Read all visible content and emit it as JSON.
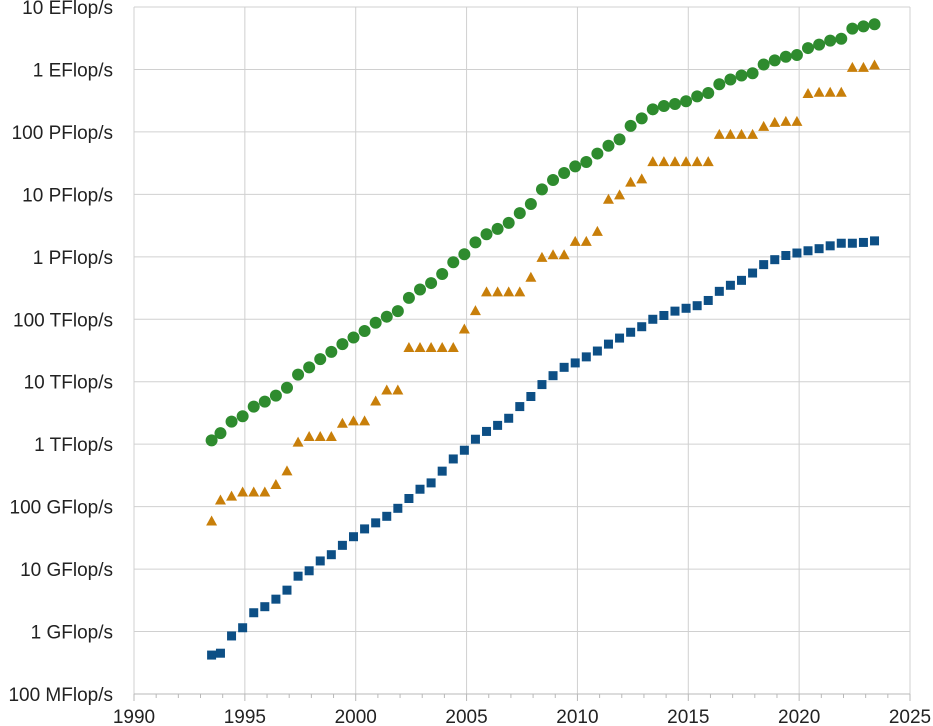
{
  "chart_data": {
    "type": "scatter",
    "title": "",
    "xlabel": "",
    "ylabel": "",
    "xlim": [
      1990,
      2025
    ],
    "ylim_flops": [
      100000000.0,
      1e+19
    ],
    "y_scale": "log",
    "grid": true,
    "legend": "none",
    "x_ticks": [
      1990,
      1995,
      2000,
      2005,
      2010,
      2015,
      2020,
      2025
    ],
    "y_ticks": [
      {
        "value": 100000000.0,
        "label": "100 MFlop/s"
      },
      {
        "value": 1000000000.0,
        "label": "1 GFlop/s"
      },
      {
        "value": 10000000000.0,
        "label": "10 GFlop/s"
      },
      {
        "value": 100000000000.0,
        "label": "100 GFlop/s"
      },
      {
        "value": 1000000000000.0,
        "label": "1 TFlop/s"
      },
      {
        "value": 10000000000000.0,
        "label": "10 TFlop/s"
      },
      {
        "value": 100000000000000.0,
        "label": "100 TFlop/s"
      },
      {
        "value": 1000000000000000.0,
        "label": "1 PFlop/s"
      },
      {
        "value": 1e+16,
        "label": "10 PFlop/s"
      },
      {
        "value": 1e+17,
        "label": "100 PFlop/s"
      },
      {
        "value": 1e+18,
        "label": "1 EFlop/s"
      },
      {
        "value": 1e+19,
        "label": "10 EFlop/s"
      }
    ],
    "series": [
      {
        "marker": "circle",
        "color": "#2e8b2e",
        "x": [
          1993.5,
          1993.9,
          1994.4,
          1994.9,
          1995.4,
          1995.9,
          1996.4,
          1996.9,
          1997.4,
          1997.9,
          1998.4,
          1998.9,
          1999.4,
          1999.9,
          2000.4,
          2000.9,
          2001.4,
          2001.9,
          2002.4,
          2002.9,
          2003.4,
          2003.9,
          2004.4,
          2004.9,
          2005.4,
          2005.9,
          2006.4,
          2006.9,
          2007.4,
          2007.9,
          2008.4,
          2008.9,
          2009.4,
          2009.9,
          2010.4,
          2010.9,
          2011.4,
          2011.9,
          2012.4,
          2012.9,
          2013.4,
          2013.9,
          2014.4,
          2014.9,
          2015.4,
          2015.9,
          2016.4,
          2016.9,
          2017.4,
          2017.9,
          2018.4,
          2018.9,
          2019.4,
          2019.9,
          2020.4,
          2020.9,
          2021.4,
          2021.9,
          2022.4,
          2022.9,
          2023.4
        ],
        "y": [
          1150000000000.0,
          1500000000000.0,
          2300000000000.0,
          2800000000000.0,
          4000000000000.0,
          4800000000000.0,
          6000000000000.0,
          8000000000000.0,
          13000000000000.0,
          17000000000000.0,
          23000000000000.0,
          30000000000000.0,
          40000000000000.0,
          51000000000000.0,
          65000000000000.0,
          88000000000000.0,
          110000000000000.0,
          135000000000000.0,
          220000000000000.0,
          300000000000000.0,
          380000000000000.0,
          530000000000000.0,
          820000000000000.0,
          1100000000000000.0,
          1700000000000000.0,
          2300000000000000.0,
          2800000000000000.0,
          3500000000000000.0,
          5000000000000000.0,
          7000000000000000.0,
          1.2e+16,
          1.7e+16,
          2.2e+16,
          2.8e+16,
          3.3e+16,
          4.5e+16,
          6e+16,
          7.6e+16,
          1.25e+17,
          1.65e+17,
          2.3e+17,
          2.6e+17,
          2.8e+17,
          3.1e+17,
          3.7e+17,
          4.2e+17,
          5.8e+17,
          6.9e+17,
          8e+17,
          8.7e+17,
          1.2e+18,
          1.4e+18,
          1.6e+18,
          1.7e+18,
          2.2e+18,
          2.5e+18,
          2.9e+18,
          3.1e+18,
          4.5e+18,
          4.9e+18,
          5.3e+18
        ]
      },
      {
        "marker": "triangle",
        "color": "#c87f0a",
        "x": [
          1993.5,
          1993.9,
          1994.4,
          1994.9,
          1995.4,
          1995.9,
          1996.4,
          1996.9,
          1997.4,
          1997.9,
          1998.4,
          1998.9,
          1999.4,
          1999.9,
          2000.4,
          2000.9,
          2001.4,
          2001.9,
          2002.4,
          2002.9,
          2003.4,
          2003.9,
          2004.4,
          2004.9,
          2005.4,
          2005.9,
          2006.4,
          2006.9,
          2007.4,
          2007.9,
          2008.4,
          2008.9,
          2009.4,
          2009.9,
          2010.4,
          2010.9,
          2011.4,
          2011.9,
          2012.4,
          2012.9,
          2013.4,
          2013.9,
          2014.4,
          2014.9,
          2015.4,
          2015.9,
          2016.4,
          2016.9,
          2017.4,
          2017.9,
          2018.4,
          2018.9,
          2019.4,
          2019.9,
          2020.4,
          2020.9,
          2021.4,
          2021.9,
          2022.4,
          2022.9,
          2023.4
        ],
        "y": [
          60000000000.0,
          130000000000.0,
          150000000000.0,
          175000000000.0,
          175000000000.0,
          175000000000.0,
          230000000000.0,
          380000000000.0,
          1100000000000.0,
          1350000000000.0,
          1350000000000.0,
          1350000000000.0,
          2200000000000.0,
          2400000000000.0,
          2400000000000.0,
          5000000000000.0,
          7500000000000.0,
          7500000000000.0,
          36000000000000.0,
          36000000000000.0,
          36000000000000.0,
          36000000000000.0,
          36000000000000.0,
          71000000000000.0,
          140000000000000.0,
          280000000000000.0,
          280000000000000.0,
          280000000000000.0,
          280000000000000.0,
          480000000000000.0,
          1000000000000000.0,
          1100000000000000.0,
          1100000000000000.0,
          1800000000000000.0,
          1800000000000000.0,
          2600000000000000.0,
          8500000000000000.0,
          1e+16,
          1.6e+16,
          1.8e+16,
          3.4e+16,
          3.4e+16,
          3.4e+16,
          3.4e+16,
          3.4e+16,
          3.4e+16,
          9.3e+16,
          9.3e+16,
          9.3e+16,
          9.3e+16,
          1.25e+17,
          1.45e+17,
          1.5e+17,
          1.5e+17,
          4.2e+17,
          4.4e+17,
          4.4e+17,
          4.4e+17,
          1.1e+18,
          1.1e+18,
          1.2e+18
        ]
      },
      {
        "marker": "square",
        "color": "#0d4f85",
        "x": [
          1993.5,
          1993.9,
          1994.4,
          1994.9,
          1995.4,
          1995.9,
          1996.4,
          1996.9,
          1997.4,
          1997.9,
          1998.4,
          1998.9,
          1999.4,
          1999.9,
          2000.4,
          2000.9,
          2001.4,
          2001.9,
          2002.4,
          2002.9,
          2003.4,
          2003.9,
          2004.4,
          2004.9,
          2005.4,
          2005.9,
          2006.4,
          2006.9,
          2007.4,
          2007.9,
          2008.4,
          2008.9,
          2009.4,
          2009.9,
          2010.4,
          2010.9,
          2011.4,
          2011.9,
          2012.4,
          2012.9,
          2013.4,
          2013.9,
          2014.4,
          2014.9,
          2015.4,
          2015.9,
          2016.4,
          2016.9,
          2017.4,
          2017.9,
          2018.4,
          2018.9,
          2019.4,
          2019.9,
          2020.4,
          2020.9,
          2021.4,
          2021.9,
          2022.4,
          2022.9,
          2023.4
        ],
        "y": [
          420000000.0,
          450000000.0,
          850000000.0,
          1150000000.0,
          2000000000.0,
          2500000000.0,
          3300000000.0,
          4600000000.0,
          7700000000.0,
          9400000000.0,
          13500000000.0,
          17000000000.0,
          24000000000.0,
          33000000000.0,
          44000000000.0,
          55000000000.0,
          70000000000.0,
          94000000000.0,
          135000000000.0,
          190000000000.0,
          240000000000.0,
          370000000000.0,
          580000000000.0,
          800000000000.0,
          1200000000000.0,
          1600000000000.0,
          2000000000000.0,
          2600000000000.0,
          4000000000000.0,
          5800000000000.0,
          9000000000000.0,
          12500000000000.0,
          17000000000000.0,
          20000000000000.0,
          25000000000000.0,
          31000000000000.0,
          40000000000000.0,
          50000000000000.0,
          62000000000000.0,
          76000000000000.0,
          100000000000000.0,
          115000000000000.0,
          135000000000000.0,
          150000000000000.0,
          165000000000000.0,
          200000000000000.0,
          280000000000000.0,
          350000000000000.0,
          420000000000000.0,
          550000000000000.0,
          750000000000000.0,
          900000000000000.0,
          1050000000000000.0,
          1150000000000000.0,
          1250000000000000.0,
          1350000000000000.0,
          1500000000000000.0,
          1650000000000000.0,
          1650000000000000.0,
          1700000000000000.0,
          1800000000000000.0
        ]
      }
    ]
  }
}
